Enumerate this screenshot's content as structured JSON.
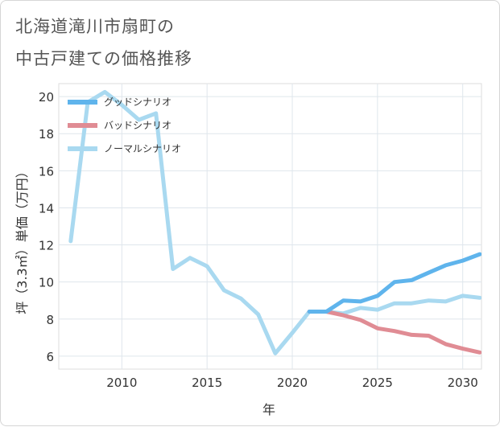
{
  "title_line1": "北海道滝川市扇町の",
  "title_line2": "中古戸建ての価格推移",
  "chart_data": {
    "type": "line",
    "xlabel": "年",
    "ylabel": "坪（3.3㎡）単価（万円）",
    "xlim": [
      2006.3,
      2031.1
    ],
    "ylim": [
      5.3,
      20.7
    ],
    "xticks": [
      2010,
      2015,
      2020,
      2025,
      2030
    ],
    "yticks": [
      6,
      8,
      10,
      12,
      14,
      16,
      18,
      20
    ],
    "legend_position": "top-left",
    "grid": true,
    "series": [
      {
        "name": "グッドシナリオ",
        "color": "#5fb4ec",
        "x": [
          2021,
          2022,
          2023,
          2024,
          2025,
          2026,
          2027,
          2028,
          2029,
          2030,
          2031
        ],
        "y": [
          8.4,
          8.4,
          9.0,
          8.95,
          9.25,
          10.0,
          10.1,
          10.5,
          10.9,
          11.15,
          11.5
        ]
      },
      {
        "name": "バッドシナリオ",
        "color": "#e08c94",
        "x": [
          2021,
          2022,
          2023,
          2024,
          2025,
          2026,
          2027,
          2028,
          2029,
          2030,
          2031
        ],
        "y": [
          8.4,
          8.4,
          8.2,
          7.95,
          7.5,
          7.35,
          7.15,
          7.1,
          6.65,
          6.4,
          6.2
        ]
      },
      {
        "name": "ノーマルシナリオ",
        "color": "#a9d9f0",
        "x": [
          2007,
          2008,
          2009,
          2010,
          2011,
          2012,
          2013,
          2014,
          2015,
          2016,
          2017,
          2018,
          2019,
          2020,
          2021,
          2022,
          2023,
          2024,
          2025,
          2026,
          2027,
          2028,
          2029,
          2030,
          2031
        ],
        "y": [
          12.2,
          19.7,
          20.25,
          19.55,
          18.75,
          19.1,
          10.7,
          11.3,
          10.85,
          9.55,
          9.1,
          8.25,
          6.15,
          7.25,
          8.4,
          8.4,
          8.3,
          8.6,
          8.5,
          8.85,
          8.85,
          9.0,
          8.95,
          9.25,
          9.15
        ]
      }
    ]
  }
}
